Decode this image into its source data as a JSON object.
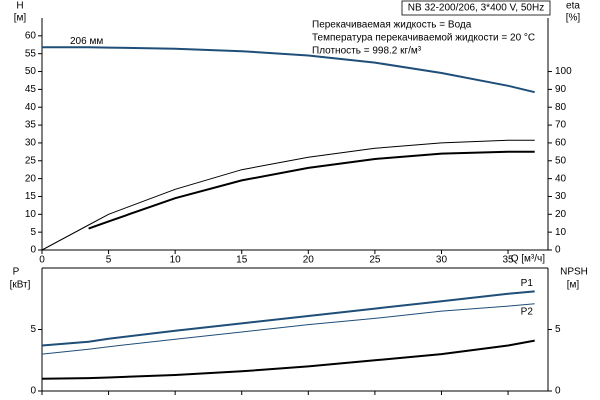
{
  "chart_data": [
    {
      "type": "line",
      "title": "NB 32-200/206, 3*400 V, 50Hz",
      "annotations": [
        "Перекачиваемая жидкость = Вода",
        "Температура перекачиваемой жидкости = 20 °C",
        "Плотность = 998.2 кг/м³"
      ],
      "y_label": "H",
      "y_unit": "[м]",
      "y2_label": "eta",
      "y2_unit": "[%]",
      "x_label": "Q [м³/ч]",
      "x": [
        0,
        3.5,
        5,
        10,
        15,
        20,
        25,
        30,
        35,
        37
      ],
      "xlim": [
        0,
        38
      ],
      "xticks": [
        0,
        5,
        10,
        15,
        20,
        25,
        30,
        35
      ],
      "ylim": [
        0,
        65
      ],
      "yticks": [
        0,
        5,
        10,
        15,
        20,
        25,
        30,
        35,
        40,
        45,
        50,
        55,
        60
      ],
      "y2lim": [
        0,
        130
      ],
      "y2ticks": [
        0,
        10,
        20,
        30,
        40,
        50,
        60,
        70,
        80,
        90,
        100
      ],
      "grid": false,
      "series": [
        {
          "name": "206 мм",
          "color": "#1f4e79",
          "width": 2,
          "values": [
            56.8,
            56.8,
            56.7,
            56.4,
            55.7,
            54.5,
            52.5,
            49.6,
            46,
            44.2
          ]
        },
        {
          "color": "#000000",
          "width": 1,
          "axis": "y2",
          "values": [
            0,
            14,
            20,
            34,
            45,
            52,
            57,
            60,
            61.5,
            61.5
          ]
        },
        {
          "color": "#000000",
          "width": 2,
          "axis": "y2",
          "values": [
            null,
            12,
            16,
            29,
            39,
            46,
            51,
            54,
            55,
            55
          ]
        }
      ]
    },
    {
      "type": "line",
      "y_label": "P",
      "y_unit": "[кВт]",
      "y2_label": "NPSH",
      "y2_unit": "[м]",
      "x": [
        0,
        3.5,
        5,
        10,
        15,
        20,
        25,
        30,
        35,
        37
      ],
      "xlim": [
        0,
        38
      ],
      "xticks": [
        0,
        5,
        10,
        15,
        20,
        25,
        30,
        35
      ],
      "ylim": [
        0,
        10
      ],
      "yticks": [
        0,
        5
      ],
      "y2lim": [
        0,
        10
      ],
      "y2ticks": [
        0,
        5
      ],
      "grid": false,
      "series": [
        {
          "name": "P1",
          "color": "#1f4e79",
          "width": 2,
          "values": [
            3.7,
            4.0,
            4.25,
            4.9,
            5.5,
            6.1,
            6.7,
            7.3,
            7.9,
            8.1
          ]
        },
        {
          "name": "P2",
          "color": "#1f4e79",
          "width": 1,
          "values": [
            3.0,
            3.4,
            3.6,
            4.2,
            4.8,
            5.4,
            5.9,
            6.5,
            6.9,
            7.1
          ]
        },
        {
          "color": "#000000",
          "width": 2,
          "axis": "y2",
          "values": [
            1.0,
            1.05,
            1.1,
            1.3,
            1.6,
            2.0,
            2.5,
            3.0,
            3.7,
            4.1
          ]
        }
      ]
    }
  ]
}
